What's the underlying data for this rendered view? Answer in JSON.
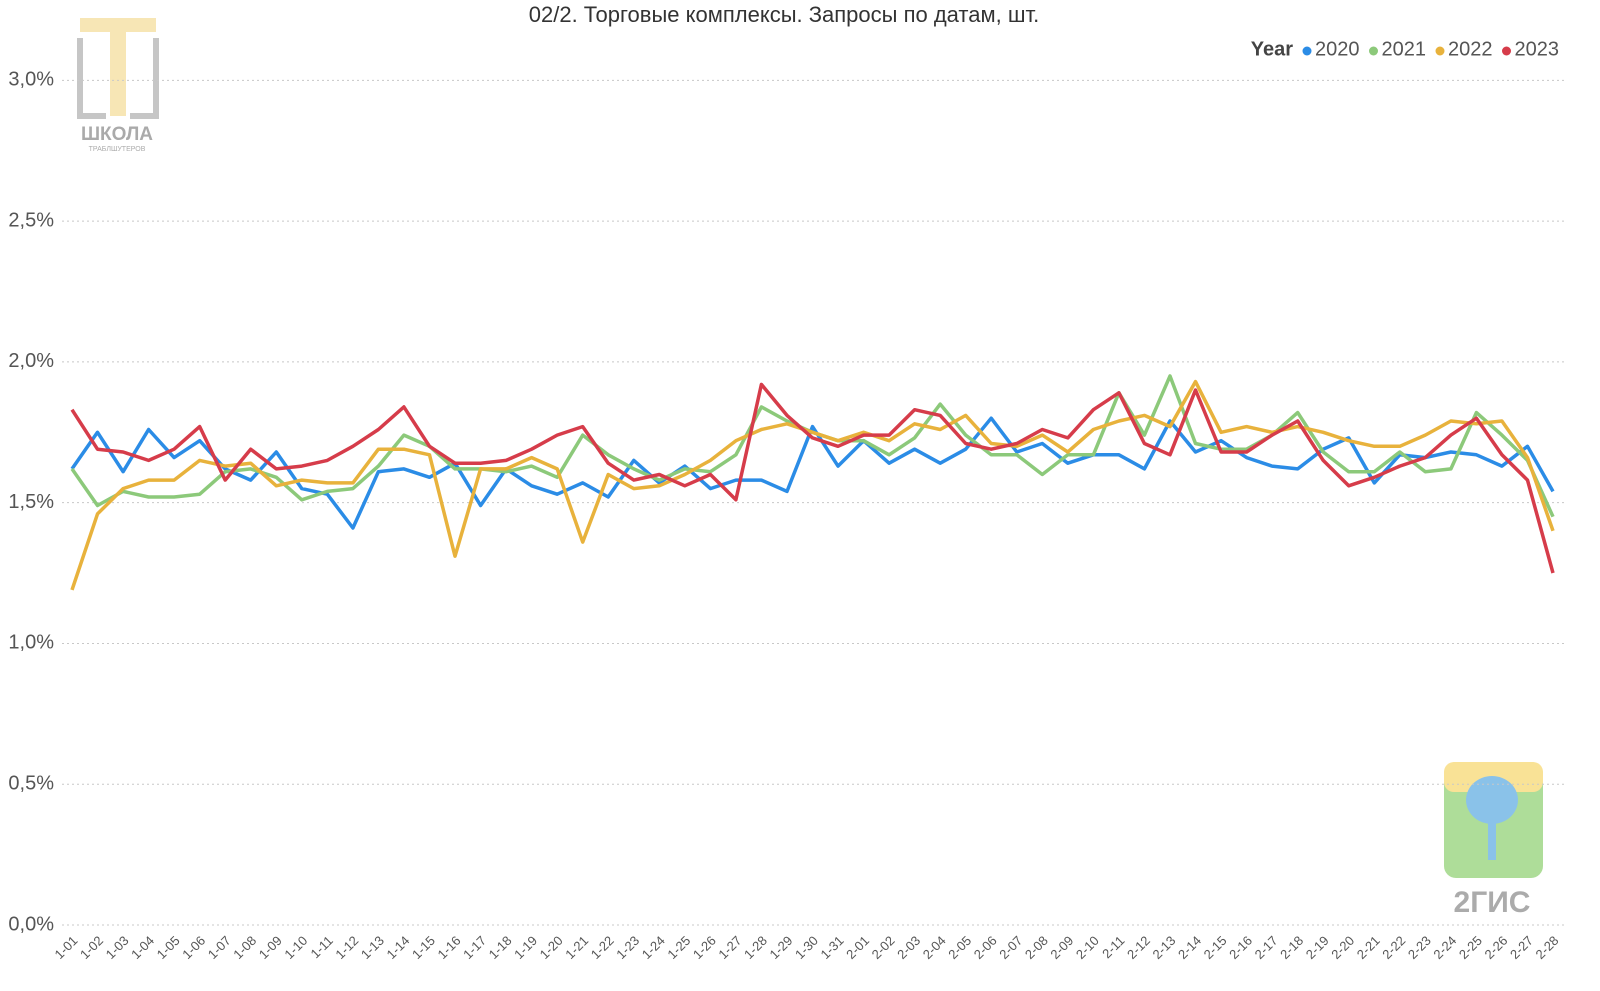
{
  "chart_data": {
    "type": "line",
    "title": "02/2. Торговые комплексы. Запросы по датам, шт.",
    "legend_title": "Year",
    "legend_position": "top-right",
    "grid": true,
    "categories": [
      "1-01",
      "1-02",
      "1-03",
      "1-04",
      "1-05",
      "1-06",
      "1-07",
      "1-08",
      "1-09",
      "1-10",
      "1-11",
      "1-12",
      "1-13",
      "1-14",
      "1-15",
      "1-16",
      "1-17",
      "1-18",
      "1-19",
      "1-20",
      "1-21",
      "1-22",
      "1-23",
      "1-24",
      "1-25",
      "1-26",
      "1-27",
      "1-28",
      "1-29",
      "1-30",
      "1-31",
      "2-01",
      "2-02",
      "2-03",
      "2-04",
      "2-05",
      "2-06",
      "2-07",
      "2-08",
      "2-09",
      "2-10",
      "2-11",
      "2-12",
      "2-13",
      "2-14",
      "2-15",
      "2-16",
      "2-17",
      "2-18",
      "2-19",
      "2-20",
      "2-21",
      "2-22",
      "2-23",
      "2-24",
      "2-25",
      "2-26",
      "2-27",
      "2-28"
    ],
    "series": [
      {
        "name": "2020",
        "color": "#2b8ce6",
        "values": [
          1.62,
          1.75,
          1.61,
          1.76,
          1.66,
          1.72,
          1.62,
          1.58,
          1.68,
          1.55,
          1.53,
          1.41,
          1.61,
          1.62,
          1.59,
          1.64,
          1.49,
          1.62,
          1.56,
          1.53,
          1.57,
          1.52,
          1.65,
          1.57,
          1.63,
          1.55,
          1.58,
          1.58,
          1.54,
          1.77,
          1.63,
          1.72,
          1.64,
          1.69,
          1.64,
          1.69,
          1.8,
          1.68,
          1.71,
          1.64,
          1.67,
          1.67,
          1.62,
          1.79,
          1.68,
          1.72,
          1.66,
          1.63,
          1.62,
          1.69,
          1.73,
          1.57,
          1.67,
          1.66,
          1.68,
          1.67,
          1.63,
          1.7,
          1.54
        ]
      },
      {
        "name": "2021",
        "color": "#8cc97a",
        "values": [
          1.62,
          1.49,
          1.54,
          1.52,
          1.52,
          1.53,
          1.61,
          1.62,
          1.59,
          1.51,
          1.54,
          1.55,
          1.63,
          1.74,
          1.7,
          1.62,
          1.62,
          1.61,
          1.63,
          1.59,
          1.74,
          1.67,
          1.62,
          1.58,
          1.62,
          1.61,
          1.67,
          1.84,
          1.79,
          1.75,
          1.72,
          1.72,
          1.67,
          1.73,
          1.85,
          1.74,
          1.67,
          1.67,
          1.6,
          1.67,
          1.67,
          1.89,
          1.74,
          1.95,
          1.71,
          1.69,
          1.69,
          1.74,
          1.82,
          1.68,
          1.61,
          1.61,
          1.68,
          1.61,
          1.62,
          1.82,
          1.74,
          1.65,
          1.45
        ]
      },
      {
        "name": "2022",
        "color": "#e8b23c",
        "values": [
          1.19,
          1.46,
          1.55,
          1.58,
          1.58,
          1.65,
          1.63,
          1.64,
          1.56,
          1.58,
          1.57,
          1.57,
          1.69,
          1.69,
          1.67,
          1.31,
          1.62,
          1.62,
          1.66,
          1.62,
          1.36,
          1.6,
          1.55,
          1.56,
          1.6,
          1.65,
          1.72,
          1.76,
          1.78,
          1.75,
          1.72,
          1.75,
          1.72,
          1.78,
          1.76,
          1.81,
          1.71,
          1.7,
          1.74,
          1.68,
          1.76,
          1.79,
          1.81,
          1.77,
          1.93,
          1.75,
          1.77,
          1.75,
          1.77,
          1.75,
          1.72,
          1.7,
          1.7,
          1.74,
          1.79,
          1.78,
          1.79,
          1.66,
          1.4
        ]
      },
      {
        "name": "2023",
        "color": "#d63c4a",
        "values": [
          1.83,
          1.69,
          1.68,
          1.65,
          1.69,
          1.77,
          1.58,
          1.69,
          1.62,
          1.63,
          1.65,
          1.7,
          1.76,
          1.84,
          1.7,
          1.64,
          1.64,
          1.65,
          1.69,
          1.74,
          1.77,
          1.64,
          1.58,
          1.6,
          1.56,
          1.6,
          1.51,
          1.92,
          1.81,
          1.73,
          1.7,
          1.74,
          1.74,
          1.83,
          1.81,
          1.71,
          1.69,
          1.71,
          1.76,
          1.73,
          1.83,
          1.89,
          1.71,
          1.67,
          1.9,
          1.68,
          1.68,
          1.74,
          1.79,
          1.65,
          1.56,
          1.59,
          1.63,
          1.66,
          1.74,
          1.8,
          1.67,
          1.58,
          1.25
        ]
      }
    ],
    "ylim": [
      0,
      3.2
    ],
    "yticks": [
      {
        "value": 0,
        "label": "0,0%"
      },
      {
        "value": 0.5,
        "label": "0,5%"
      },
      {
        "value": 1,
        "label": "1,0%"
      },
      {
        "value": 1.5,
        "label": "1,5%"
      },
      {
        "value": 2,
        "label": "2,0%"
      },
      {
        "value": 2.5,
        "label": "2,5%"
      },
      {
        "value": 3,
        "label": "3,0%"
      }
    ]
  },
  "watermarks": {
    "school_name": "ШКОЛА",
    "school_subtitle": "ТРАБЛШУТЕРОВ",
    "brand": "2ГИС"
  }
}
